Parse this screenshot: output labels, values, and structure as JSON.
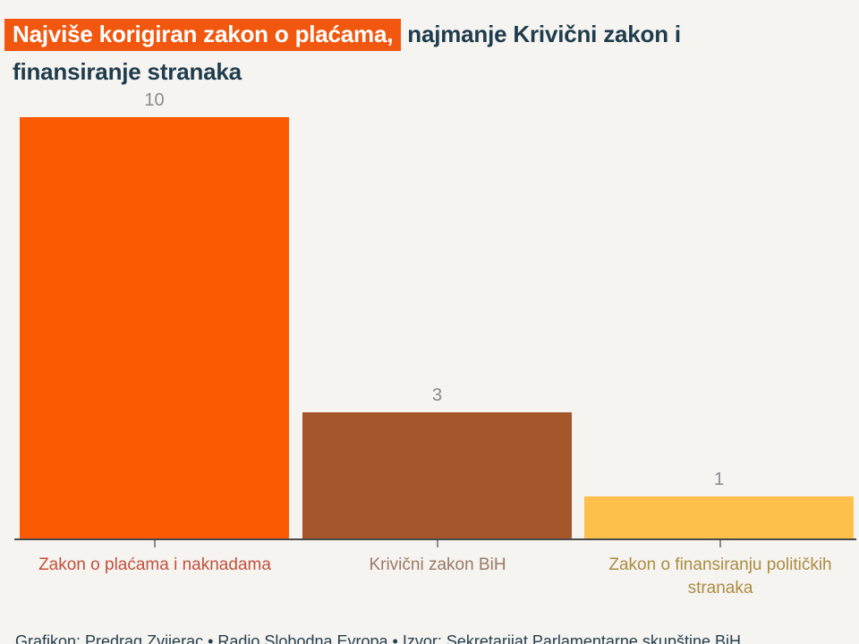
{
  "title": {
    "highlight": "Najviše korigiran zakon o plaćama,",
    "line1_rest": " najmanje Krivični zakon i",
    "line2": "finansiranje stranaka"
  },
  "chart_data": {
    "type": "bar",
    "title": "Najviše korigiran zakon o plaćama, najmanje Krivični zakon i finansiranje stranaka",
    "categories": [
      "Zakon o plaćama i naknadama",
      "Krivični zakon BiH",
      "Zakon o finansiranju političkih stranaka"
    ],
    "values": [
      10,
      3,
      1
    ],
    "xlabel": "",
    "ylabel": "",
    "ylim": [
      0,
      10
    ],
    "grid": false,
    "legend_position": "none",
    "value_labels": "above bars",
    "bars": [
      {
        "label": "Zakon o plaćama i naknadama",
        "value": 10,
        "color": "#fb5a02",
        "label_color": "#c3503a"
      },
      {
        "label": "Krivični zakon BiH",
        "value": 3,
        "color": "#a5562b",
        "label_color": "#9b7864"
      },
      {
        "label": "Zakon o finansiranju političkih stranaka",
        "value": 1,
        "color": "#fcc04b",
        "label_color": "#ac8c41"
      }
    ]
  },
  "footer": {
    "credit": "Grafikon: Predrag Zvijerac • Radio Slobodna Evropa • Izvor: Sekretarijat Parlamentarne skupštine BiH"
  }
}
